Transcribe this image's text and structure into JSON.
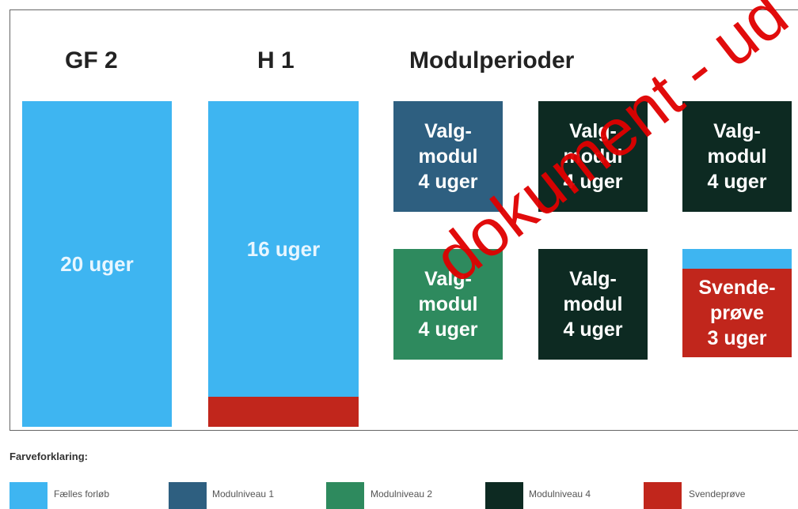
{
  "headers": [
    "GF 2",
    "H 1",
    "Modulperioder"
  ],
  "blocks": [
    {
      "label": "20 uger"
    },
    {
      "label": "16 uger"
    }
  ],
  "modules": [
    {
      "lines": [
        "Valg-",
        "modul",
        "4 uger"
      ]
    },
    {
      "lines": [
        "Valg-",
        "modul",
        "4 uger"
      ]
    },
    {
      "lines": [
        "Valg-",
        "modul",
        "4 uger"
      ]
    },
    {
      "lines": [
        "Valg-",
        "modul",
        "4 uger"
      ]
    },
    {
      "lines": [
        "Valg-",
        "modul",
        "4 uger"
      ]
    },
    {
      "lines": [
        "Svende-",
        "prøve",
        "3 uger"
      ]
    }
  ],
  "legend": {
    "title": "Farveforklaring:",
    "items": [
      "Fælles forløb",
      "Modulniveau 1",
      "Modulniveau 2",
      "Modulniveau 4",
      "Svendeprøve"
    ]
  },
  "watermark": "dokument - ud"
}
